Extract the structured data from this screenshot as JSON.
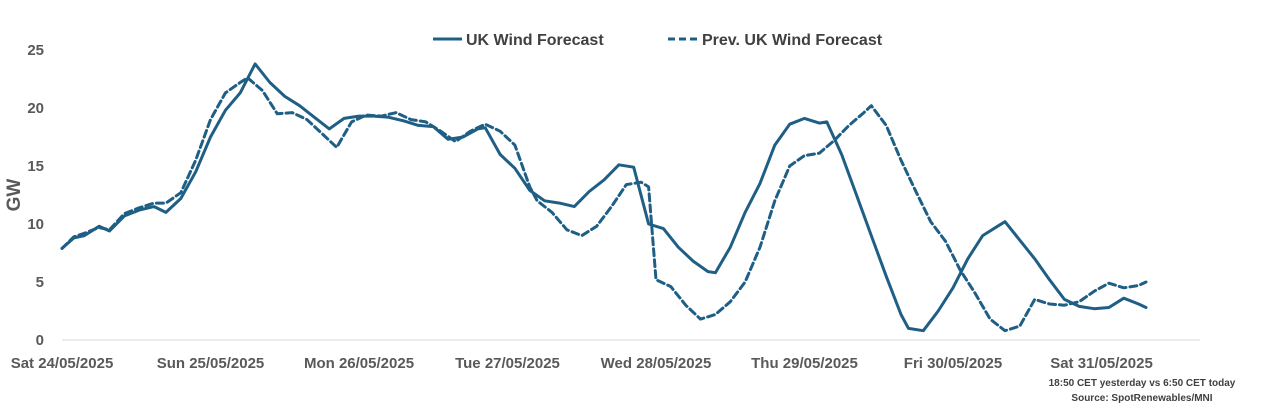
{
  "chart_data": {
    "type": "line",
    "title": "",
    "ylabel": "GW",
    "xlabel": "",
    "ylim": [
      0,
      25
    ],
    "yticks": [
      0,
      5,
      10,
      15,
      20,
      25
    ],
    "x_range_days": [
      0,
      7.7
    ],
    "x_tick_labels": [
      "Sat 24/05/2025",
      "Sun 25/05/2025",
      "Mon 26/05/2025",
      "Tue 27/05/2025",
      "Wed 28/05/2025",
      "Thu 29/05/2025",
      "Fri 30/05/2025",
      "Sat 31/05/2025"
    ],
    "legend_position": "top",
    "grid": false,
    "series": [
      {
        "name": "UK Wind Forecast",
        "style": "solid",
        "color": "#1f5f86",
        "points": [
          [
            0.0,
            7.9
          ],
          [
            0.08,
            8.8
          ],
          [
            0.15,
            9.0
          ],
          [
            0.25,
            9.8
          ],
          [
            0.32,
            9.4
          ],
          [
            0.42,
            10.7
          ],
          [
            0.52,
            11.2
          ],
          [
            0.62,
            11.5
          ],
          [
            0.7,
            11.0
          ],
          [
            0.8,
            12.2
          ],
          [
            0.9,
            14.5
          ],
          [
            1.0,
            17.5
          ],
          [
            1.1,
            19.8
          ],
          [
            1.2,
            21.3
          ],
          [
            1.3,
            23.8
          ],
          [
            1.4,
            22.2
          ],
          [
            1.5,
            21.0
          ],
          [
            1.6,
            20.2
          ],
          [
            1.7,
            19.2
          ],
          [
            1.8,
            18.2
          ],
          [
            1.9,
            19.1
          ],
          [
            2.0,
            19.3
          ],
          [
            2.1,
            19.3
          ],
          [
            2.2,
            19.2
          ],
          [
            2.3,
            18.9
          ],
          [
            2.4,
            18.5
          ],
          [
            2.5,
            18.4
          ],
          [
            2.6,
            17.3
          ],
          [
            2.7,
            17.5
          ],
          [
            2.8,
            18.2
          ],
          [
            2.85,
            18.3
          ],
          [
            2.95,
            16.0
          ],
          [
            3.05,
            14.8
          ],
          [
            3.15,
            12.9
          ],
          [
            3.25,
            12.0
          ],
          [
            3.35,
            11.8
          ],
          [
            3.45,
            11.5
          ],
          [
            3.55,
            12.8
          ],
          [
            3.65,
            13.8
          ],
          [
            3.75,
            15.1
          ],
          [
            3.85,
            14.9
          ],
          [
            3.95,
            10.0
          ],
          [
            4.05,
            9.6
          ],
          [
            4.15,
            8.0
          ],
          [
            4.25,
            6.8
          ],
          [
            4.35,
            5.9
          ],
          [
            4.4,
            5.8
          ],
          [
            4.5,
            8.0
          ],
          [
            4.6,
            11.0
          ],
          [
            4.7,
            13.5
          ],
          [
            4.8,
            16.8
          ],
          [
            4.9,
            18.6
          ],
          [
            5.0,
            19.1
          ],
          [
            5.1,
            18.7
          ],
          [
            5.15,
            18.8
          ],
          [
            5.25,
            16.0
          ],
          [
            5.35,
            12.5
          ],
          [
            5.45,
            9.0
          ],
          [
            5.55,
            5.5
          ],
          [
            5.65,
            2.2
          ],
          [
            5.7,
            1.0
          ],
          [
            5.8,
            0.8
          ],
          [
            5.9,
            2.5
          ],
          [
            6.0,
            4.5
          ],
          [
            6.1,
            7.0
          ],
          [
            6.2,
            9.0
          ],
          [
            6.3,
            9.8
          ],
          [
            6.35,
            10.2
          ],
          [
            6.45,
            8.6
          ],
          [
            6.55,
            7.0
          ],
          [
            6.65,
            5.2
          ],
          [
            6.75,
            3.5
          ],
          [
            6.85,
            2.9
          ],
          [
            6.95,
            2.7
          ],
          [
            7.05,
            2.8
          ],
          [
            7.15,
            3.6
          ],
          [
            7.25,
            3.1
          ],
          [
            7.3,
            2.8
          ]
        ]
      },
      {
        "name": "Prev. UK Wind Forecast",
        "style": "dashed",
        "color": "#1f5f86",
        "points": [
          [
            0.0,
            7.9
          ],
          [
            0.08,
            8.9
          ],
          [
            0.15,
            9.2
          ],
          [
            0.25,
            9.7
          ],
          [
            0.32,
            9.5
          ],
          [
            0.42,
            10.9
          ],
          [
            0.52,
            11.4
          ],
          [
            0.62,
            11.8
          ],
          [
            0.7,
            11.8
          ],
          [
            0.8,
            12.7
          ],
          [
            0.9,
            15.5
          ],
          [
            1.0,
            19.0
          ],
          [
            1.1,
            21.3
          ],
          [
            1.2,
            22.2
          ],
          [
            1.25,
            22.6
          ],
          [
            1.35,
            21.5
          ],
          [
            1.45,
            19.5
          ],
          [
            1.55,
            19.6
          ],
          [
            1.65,
            19.0
          ],
          [
            1.75,
            17.8
          ],
          [
            1.85,
            16.6
          ],
          [
            1.95,
            18.8
          ],
          [
            2.05,
            19.4
          ],
          [
            2.15,
            19.3
          ],
          [
            2.25,
            19.6
          ],
          [
            2.35,
            19.0
          ],
          [
            2.45,
            18.8
          ],
          [
            2.55,
            18.0
          ],
          [
            2.65,
            17.1
          ],
          [
            2.75,
            18.0
          ],
          [
            2.85,
            18.6
          ],
          [
            2.95,
            18.0
          ],
          [
            3.05,
            16.8
          ],
          [
            3.15,
            13.2
          ],
          [
            3.2,
            12.0
          ],
          [
            3.3,
            11.0
          ],
          [
            3.4,
            9.5
          ],
          [
            3.5,
            9.0
          ],
          [
            3.6,
            9.8
          ],
          [
            3.7,
            11.5
          ],
          [
            3.8,
            13.4
          ],
          [
            3.9,
            13.6
          ],
          [
            3.95,
            13.2
          ],
          [
            4.0,
            5.2
          ],
          [
            4.1,
            4.6
          ],
          [
            4.2,
            3.0
          ],
          [
            4.3,
            1.8
          ],
          [
            4.4,
            2.2
          ],
          [
            4.5,
            3.3
          ],
          [
            4.6,
            5.0
          ],
          [
            4.7,
            8.0
          ],
          [
            4.8,
            12.0
          ],
          [
            4.9,
            15.0
          ],
          [
            5.0,
            15.9
          ],
          [
            5.1,
            16.1
          ],
          [
            5.2,
            17.2
          ],
          [
            5.3,
            18.5
          ],
          [
            5.4,
            19.6
          ],
          [
            5.45,
            20.2
          ],
          [
            5.55,
            18.5
          ],
          [
            5.65,
            15.5
          ],
          [
            5.75,
            12.8
          ],
          [
            5.85,
            10.2
          ],
          [
            5.95,
            8.5
          ],
          [
            6.05,
            6.0
          ],
          [
            6.15,
            4.0
          ],
          [
            6.25,
            1.8
          ],
          [
            6.35,
            0.8
          ],
          [
            6.45,
            1.2
          ],
          [
            6.55,
            3.5
          ],
          [
            6.65,
            3.1
          ],
          [
            6.75,
            3.0
          ],
          [
            6.85,
            3.3
          ],
          [
            6.95,
            4.2
          ],
          [
            7.05,
            4.9
          ],
          [
            7.15,
            4.5
          ],
          [
            7.25,
            4.7
          ],
          [
            7.3,
            5.0
          ]
        ]
      }
    ],
    "annotations": [
      "18:50 CET yesterday vs  6:50 CET today",
      "Source: SpotRenewables/MNI"
    ]
  }
}
